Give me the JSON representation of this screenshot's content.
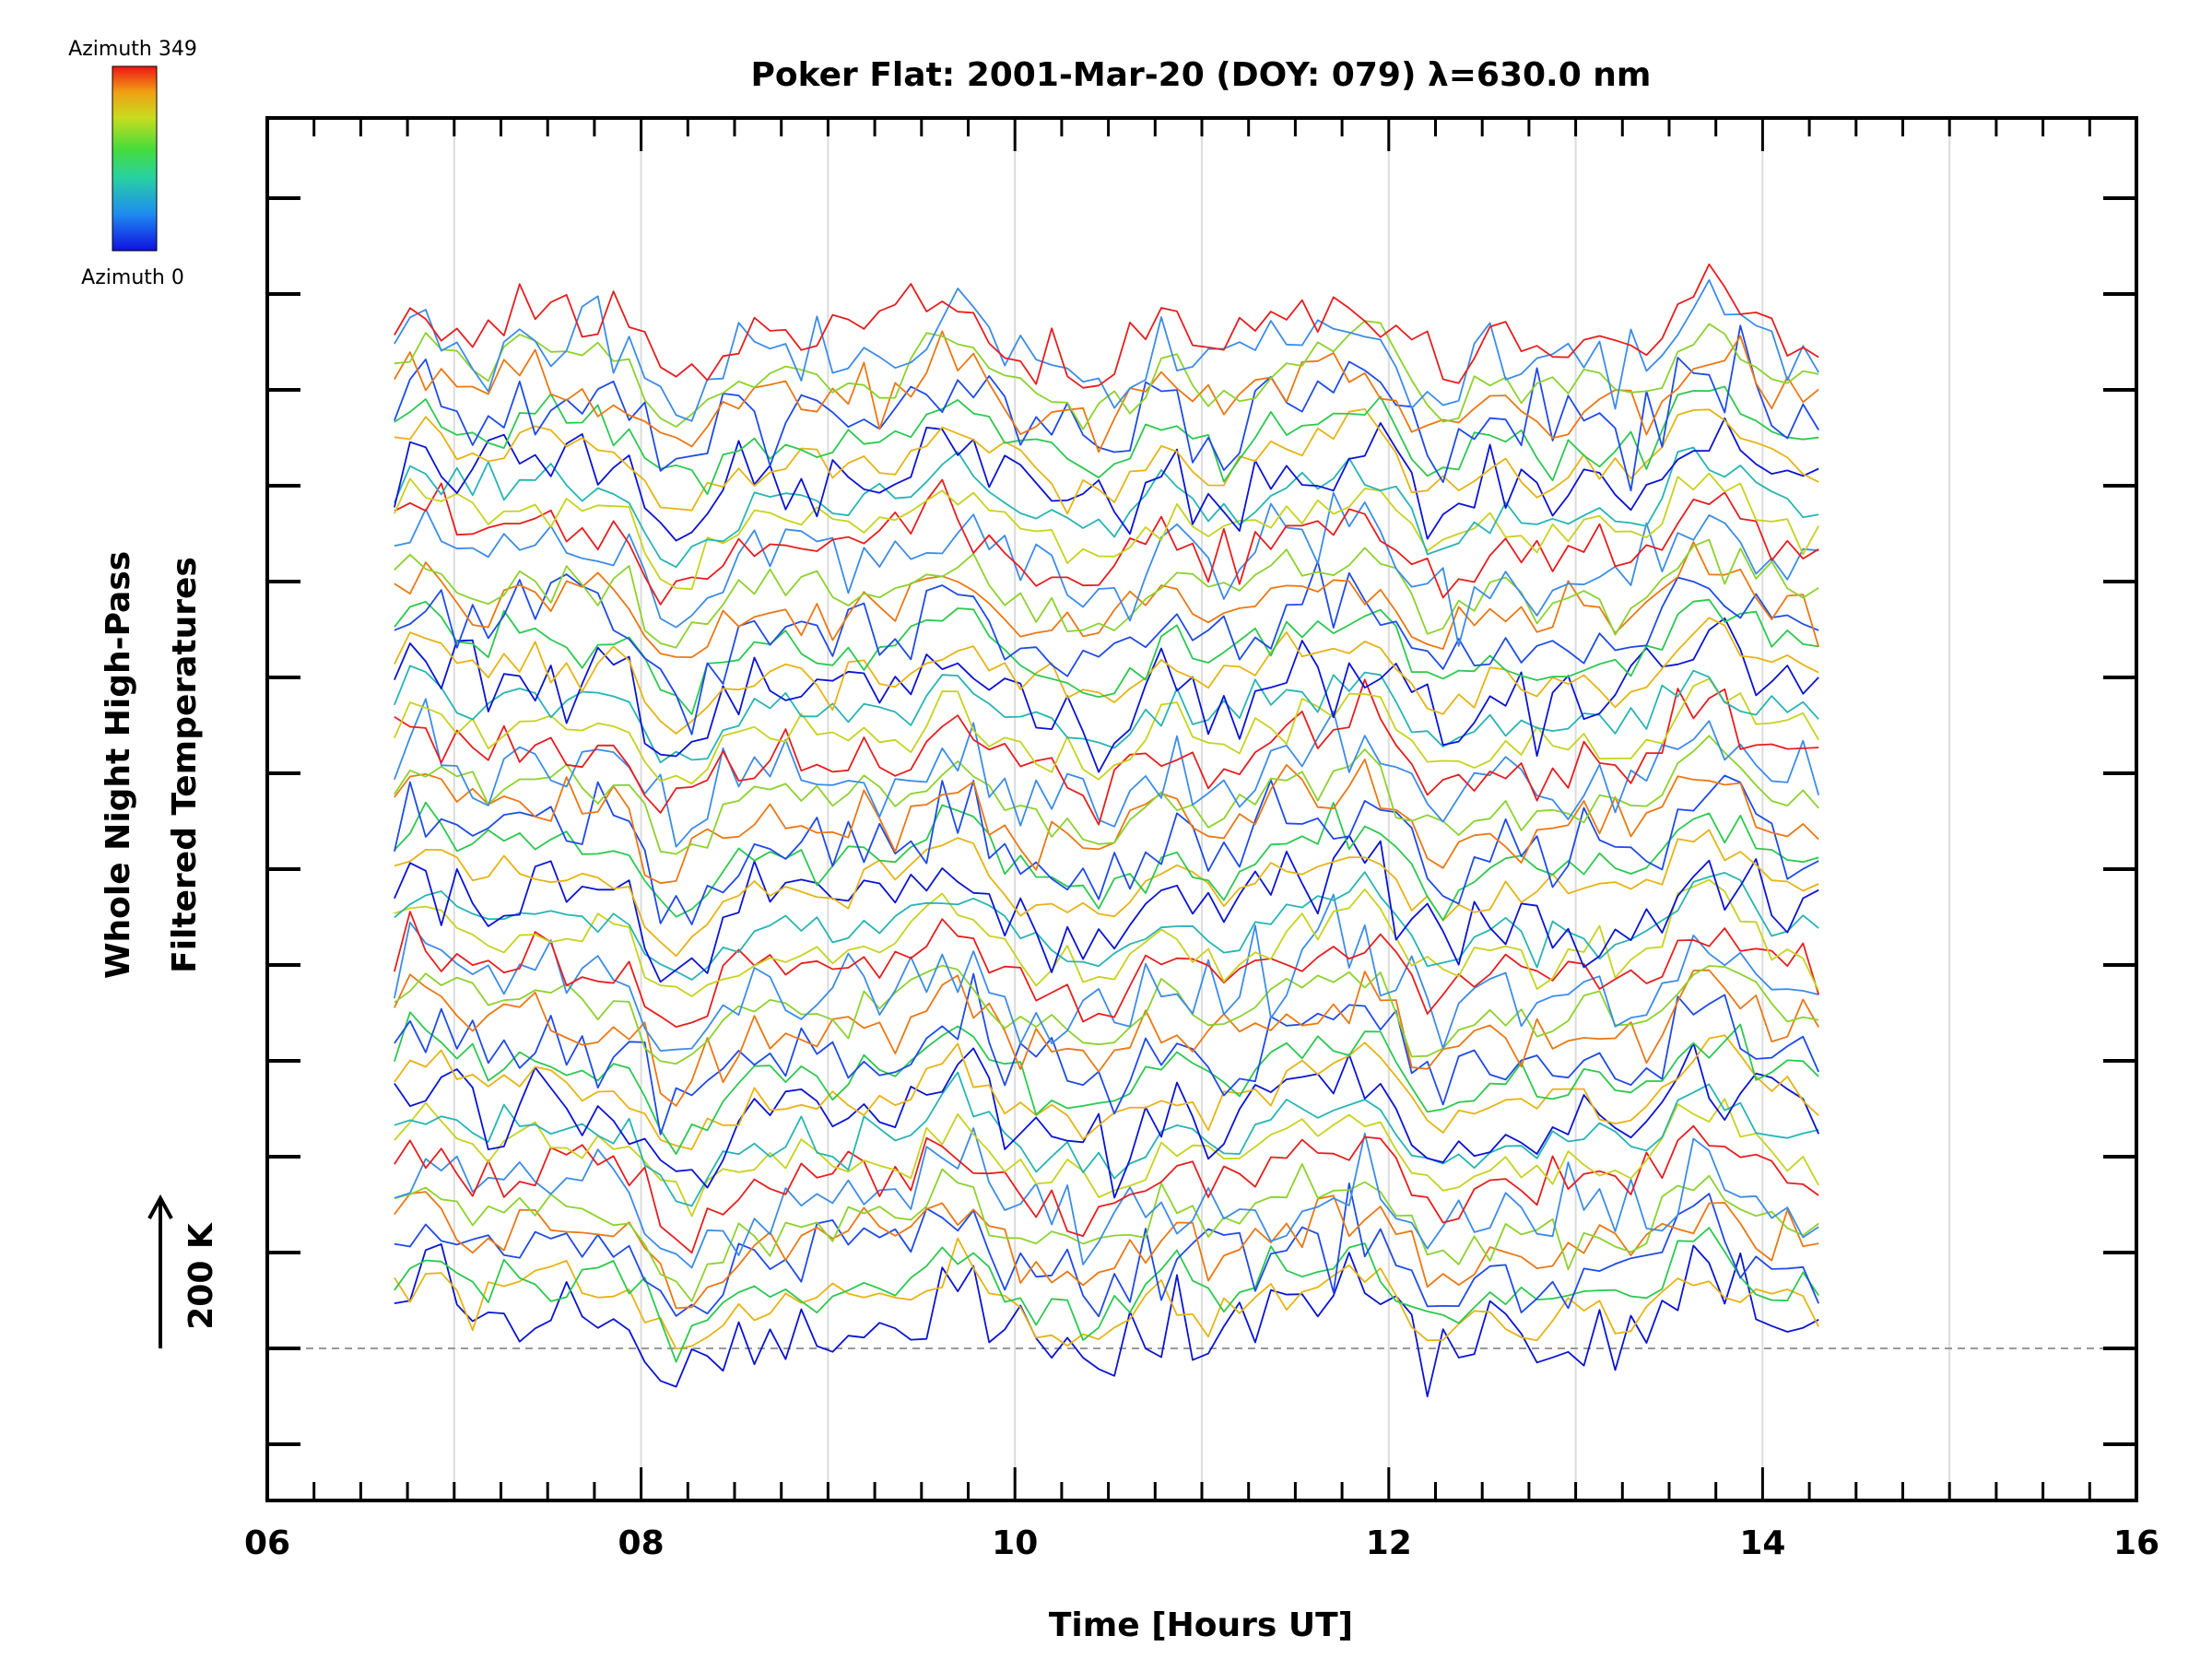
{
  "chart_data": {
    "type": "line",
    "title": "Poker Flat: 2001-Mar-20 (DOY: 079) λ=630.0 nm",
    "xlabel": "Time [Hours UT]",
    "ylabel_line1": "Whole Night High-Pass",
    "ylabel_line2": "Filtered Temperatures",
    "scale_label": "200 K",
    "xlim": [
      6,
      16
    ],
    "x_ticks": [
      "06",
      "08",
      "10",
      "12",
      "14",
      "16"
    ],
    "x_range_data": [
      6.68,
      14.3
    ],
    "grid": "vertical hourly",
    "colorbar": {
      "top_label": "Azimuth 349",
      "bottom_label": "Azimuth 0",
      "placement": "top-left"
    },
    "series_description_counts": {
      "traces": 48,
      "stacked": true
    },
    "palette": [
      "#0a14d2",
      "#1e4be6",
      "#3c8ce6",
      "#28b4b4",
      "#2dc850",
      "#8cd22d",
      "#c8d21e",
      "#e6b414",
      "#eb7814",
      "#e61e1e"
    ]
  }
}
